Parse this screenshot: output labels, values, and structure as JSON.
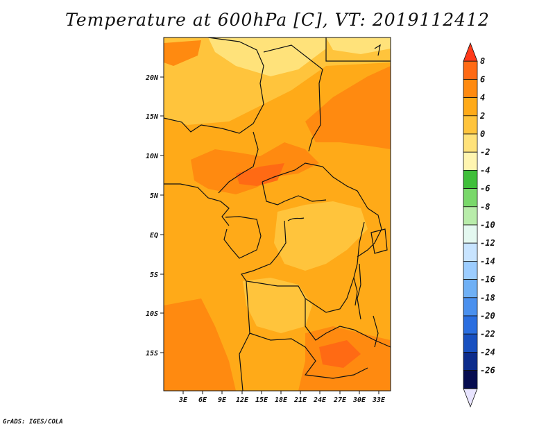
{
  "title": "Temperature at 600hPa [C], VT: 2019112412",
  "footer": "GrADS: IGES/COLA",
  "map": {
    "lat_labels": [
      "20N",
      "15N",
      "10N",
      "5N",
      "EQ",
      "5S",
      "10S",
      "15S"
    ],
    "lon_labels": [
      "3E",
      "6E",
      "9E",
      "12E",
      "15E",
      "18E",
      "21E",
      "24E",
      "27E",
      "30E",
      "33E"
    ]
  },
  "colorbar": {
    "labels": [
      "8",
      "6",
      "4",
      "2",
      "0",
      "-2",
      "-4",
      "-6",
      "-8",
      "-10",
      "-12",
      "-14",
      "-16",
      "-18",
      "-20",
      "-22",
      "-24",
      "-26"
    ],
    "colors": [
      "#ff3a1a",
      "#ff6a14",
      "#ff8a10",
      "#ffaa18",
      "#ffc43c",
      "#ffe27a",
      "#fff5b0",
      "#3fbf3a",
      "#79d86a",
      "#b8ecaa",
      "#e4f8f0",
      "#c8e4ff",
      "#9ccdff",
      "#6fb0f5",
      "#4a90ee",
      "#2a6ee0",
      "#1850c0",
      "#0c2c8c",
      "#060c50",
      "#e8e4ff"
    ]
  }
}
